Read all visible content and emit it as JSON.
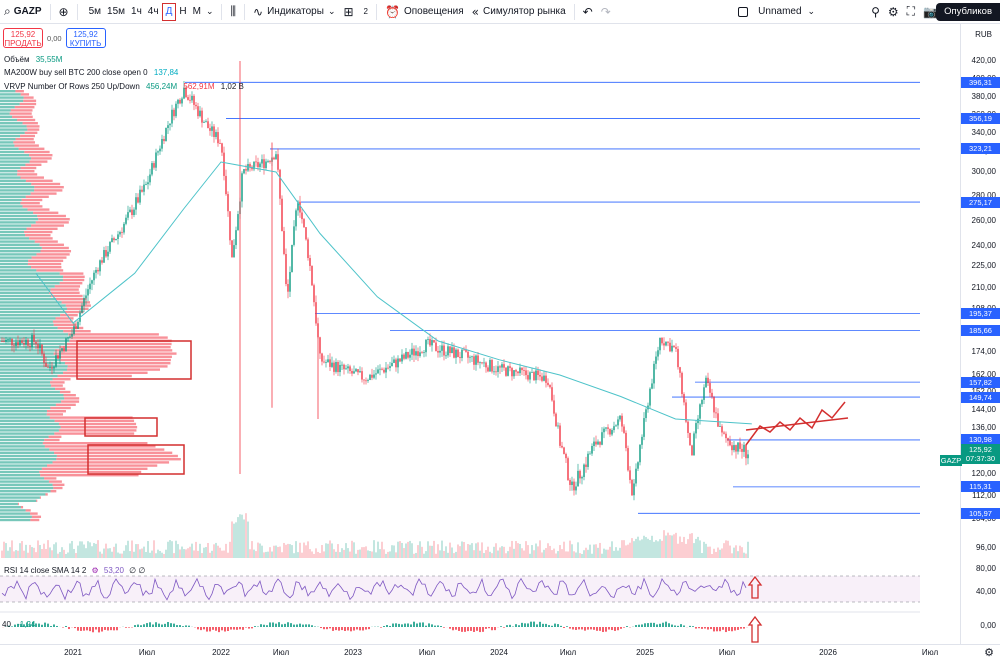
{
  "toolbar": {
    "symbol": "GAZP",
    "timeframes": [
      "5м",
      "15м",
      "1ч",
      "4ч",
      "Д",
      "Н",
      "М"
    ],
    "active_timeframe": "Д",
    "indicators_label": "Индикаторы",
    "layouts_count": "2",
    "alerts_label": "Оповещения",
    "replay_label": "Симулятор рынка",
    "layout_name": "Unnamed",
    "publish_label": "Опубликов"
  },
  "trade": {
    "sell_price": "125,92",
    "sell_label": "ПРОДАТЬ",
    "spread": "0,00",
    "buy_price": "125,92",
    "buy_label": "КУПИТЬ"
  },
  "legends": {
    "volume_label": "Объём",
    "volume_value": "35,55M",
    "ma_label": "MA200W buy sell BTC 200 close open 0",
    "ma_value": "137,84",
    "vrvp_label": "VRVP Number Of Rows 250 Up/Down",
    "vrvp_up": "456,24M",
    "vrvp_down": "562,91M",
    "vrvp_total": "1,02 B",
    "rsi_label": "RSI 14 close SMA 14 2",
    "rsi_value": "53,20",
    "rsi_extra": "∅ ∅",
    "osc_label": "40",
    "osc_value": "-1,24"
  },
  "price_scale": {
    "currency": "RUB",
    "labels": [
      "420,00",
      "400,00",
      "380,00",
      "360,00",
      "340,00",
      "320,00",
      "300,00",
      "280,00",
      "260,00",
      "240,00",
      "225,00",
      "210,00",
      "198,00",
      "186,00",
      "174,00",
      "162,00",
      "152,00",
      "144,00",
      "136,00",
      "128,00",
      "120,00",
      "112,00",
      "104,00",
      "96,00"
    ],
    "highlighted": [
      "396,31",
      "356,19",
      "323,21",
      "275,17",
      "195,37",
      "185,66",
      "157,82",
      "149,74",
      "130,98",
      "115,31",
      "105,97"
    ],
    "current_price": "125,92",
    "countdown": "07:37:30",
    "symbol_tag": "GAZP",
    "rsi_labels": [
      "80,00",
      "40,00"
    ],
    "osc_labels": [
      "0,00"
    ]
  },
  "time_axis": {
    "labels": [
      "2021",
      "Июл",
      "2022",
      "Июл",
      "2023",
      "Июл",
      "2024",
      "Июл",
      "2025",
      "Июл",
      "2026",
      "Июл"
    ]
  },
  "colors": {
    "up": "#089981",
    "down": "#f23645",
    "ma": "#4dc3c9",
    "hline": "#2962ff",
    "annotation": "#d32f2f"
  },
  "chart_data": {
    "type": "candlestick",
    "symbol": "GAZP",
    "currency": "RUB",
    "current_price": 125.92,
    "horizontal_levels": [
      396.31,
      356.19,
      323.21,
      275.17,
      195.37,
      185.66,
      157.82,
      149.74,
      130.98,
      115.31,
      105.97
    ],
    "price_path": [
      {
        "t": "2020-10",
        "p": 180
      },
      {
        "t": "2020-11",
        "p": 165
      },
      {
        "t": "2021-01",
        "p": 185
      },
      {
        "t": "2021-03",
        "p": 225
      },
      {
        "t": "2021-05",
        "p": 255
      },
      {
        "t": "2021-07",
        "p": 290
      },
      {
        "t": "2021-09",
        "p": 360
      },
      {
        "t": "2021-10",
        "p": 390
      },
      {
        "t": "2021-12",
        "p": 345
      },
      {
        "t": "2022-01",
        "p": 330
      },
      {
        "t": "2022-02",
        "p": 230
      },
      {
        "t": "2022-03",
        "p": 300
      },
      {
        "t": "2022-05",
        "p": 310
      },
      {
        "t": "2022-06",
        "p": 320
      },
      {
        "t": "2022-07",
        "p": 200
      },
      {
        "t": "2022-08",
        "p": 280
      },
      {
        "t": "2022-09",
        "p": 230
      },
      {
        "t": "2022-10",
        "p": 170
      },
      {
        "t": "2022-12",
        "p": 165
      },
      {
        "t": "2023-02",
        "p": 160
      },
      {
        "t": "2023-05",
        "p": 170
      },
      {
        "t": "2023-07",
        "p": 178
      },
      {
        "t": "2023-10",
        "p": 172
      },
      {
        "t": "2024-01",
        "p": 165
      },
      {
        "t": "2024-05",
        "p": 160
      },
      {
        "t": "2024-06",
        "p": 130
      },
      {
        "t": "2024-07",
        "p": 115
      },
      {
        "t": "2024-09",
        "p": 130
      },
      {
        "t": "2024-11",
        "p": 140
      },
      {
        "t": "2024-12",
        "p": 112
      },
      {
        "t": "2025-01",
        "p": 140
      },
      {
        "t": "2025-02",
        "p": 182
      },
      {
        "t": "2025-03",
        "p": 175
      },
      {
        "t": "2025-04",
        "p": 124
      },
      {
        "t": "2025-05",
        "p": 158
      },
      {
        "t": "2025-06",
        "p": 133
      },
      {
        "t": "2025-07",
        "p": 128
      },
      {
        "t": "2025-08",
        "p": 126
      }
    ],
    "ma_path": [
      {
        "t": "2020-10",
        "p": 220
      },
      {
        "t": "2021-01",
        "p": 190
      },
      {
        "t": "2021-06",
        "p": 220
      },
      {
        "t": "2021-10",
        "p": 270
      },
      {
        "t": "2022-01",
        "p": 310
      },
      {
        "t": "2022-06",
        "p": 300
      },
      {
        "t": "2022-10",
        "p": 250
      },
      {
        "t": "2023-03",
        "p": 205
      },
      {
        "t": "2023-08",
        "p": 180
      },
      {
        "t": "2024-01",
        "p": 170
      },
      {
        "t": "2024-06",
        "p": 162
      },
      {
        "t": "2024-11",
        "p": 150
      },
      {
        "t": "2025-03",
        "p": 140
      },
      {
        "t": "2025-08",
        "p": 137.84
      }
    ],
    "rsi_value": 53.2,
    "osc_value": -1.24,
    "projection_arrow": "up",
    "ylim": [
      96,
      420
    ]
  }
}
